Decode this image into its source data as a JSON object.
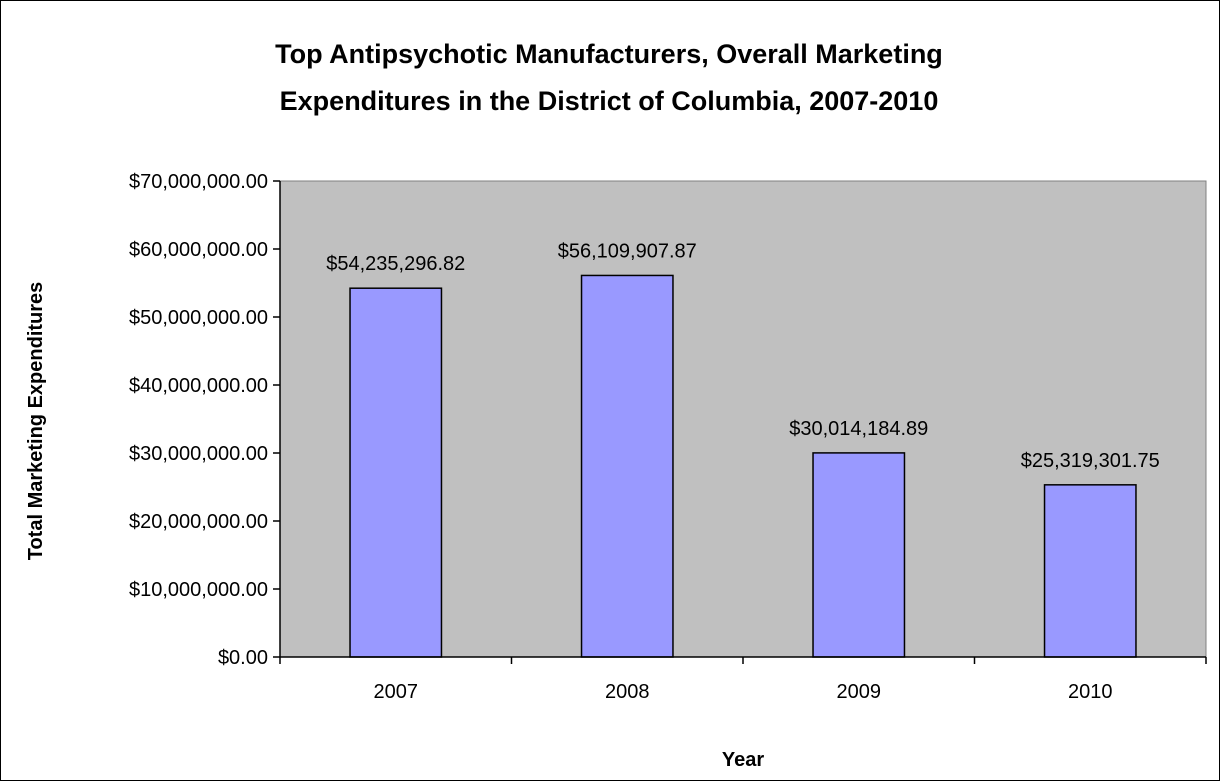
{
  "chart_data": {
    "type": "bar",
    "title_lines": [
      "Top Antipsychotic Manufacturers, Overall Marketing",
      "Expenditures in the District of Columbia, 2007-2010"
    ],
    "xlabel": "Year",
    "ylabel": "Total Marketing Expenditures",
    "categories": [
      "2007",
      "2008",
      "2009",
      "2010"
    ],
    "values": [
      54235296.82,
      56109907.87,
      30014184.89,
      25319301.75
    ],
    "data_labels": [
      "$54,235,296.82",
      "$56,109,907.87",
      "$30,014,184.89",
      "$25,319,301.75"
    ],
    "ylim": [
      0,
      70000000
    ],
    "yticks": [
      0,
      10000000,
      20000000,
      30000000,
      40000000,
      50000000,
      60000000,
      70000000
    ],
    "ytick_labels": [
      "$0.00",
      "$10,000,000.00",
      "$20,000,000.00",
      "$30,000,000.00",
      "$40,000,000.00",
      "$50,000,000.00",
      "$60,000,000.00",
      "$70,000,000.00"
    ],
    "grid": false,
    "legend": "none",
    "colors": {
      "plot_background": "#c0c0c0",
      "bar_fill": "#9999ff",
      "bar_stroke": "#000000",
      "axis": "#000000"
    }
  }
}
